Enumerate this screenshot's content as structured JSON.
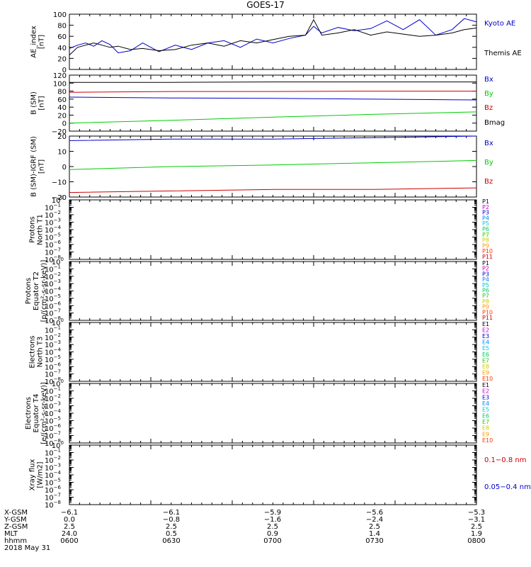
{
  "title": "GOES-17",
  "colors": {
    "blue": "#0000cc",
    "red": "#cc0000",
    "green": "#00cc00",
    "black": "#000000"
  },
  "chart_data": [
    {
      "type": "line",
      "panel": "ae",
      "ylabel": [
        "AE_index",
        "[nT]"
      ],
      "ylim": [
        0,
        100
      ],
      "yticks": [
        "0",
        "20",
        "40",
        "60",
        "80",
        "100"
      ],
      "ytick_values": [
        0,
        20,
        40,
        60,
        80,
        100
      ],
      "x": [
        0.0,
        0.02,
        0.04,
        0.06,
        0.08,
        0.1,
        0.12,
        0.15,
        0.18,
        0.22,
        0.26,
        0.3,
        0.34,
        0.38,
        0.42,
        0.46,
        0.5,
        0.54,
        0.58,
        0.6,
        0.62,
        0.66,
        0.7,
        0.74,
        0.78,
        0.82,
        0.86,
        0.9,
        0.94,
        0.97,
        1.0
      ],
      "series": [
        {
          "name": "Kyoto AE",
          "color": "#0000cc",
          "values": [
            38,
            44,
            48,
            42,
            52,
            45,
            30,
            34,
            48,
            32,
            44,
            36,
            48,
            52,
            40,
            55,
            48,
            56,
            62,
            78,
            66,
            76,
            70,
            74,
            88,
            72,
            90,
            62,
            72,
            92,
            86
          ]
        },
        {
          "name": "Themis AE",
          "color": "#000000",
          "values": [
            26,
            40,
            44,
            48,
            44,
            40,
            42,
            36,
            38,
            34,
            36,
            44,
            48,
            42,
            52,
            48,
            54,
            60,
            62,
            90,
            62,
            66,
            72,
            62,
            68,
            64,
            60,
            62,
            66,
            72,
            75
          ]
        }
      ]
    },
    {
      "type": "line",
      "panel": "bsm",
      "ylabel": [
        "B (SM)",
        "[nT]"
      ],
      "ylim": [
        -20,
        120
      ],
      "yticks": [
        "−20",
        "0",
        "20",
        "40",
        "60",
        "80",
        "100",
        "120"
      ],
      "ytick_values": [
        -20,
        0,
        20,
        40,
        60,
        80,
        100,
        120
      ],
      "x": [
        0,
        0.25,
        0.5,
        0.75,
        1.0
      ],
      "series": [
        {
          "name": "Bx",
          "color": "#0000cc",
          "values": [
            65,
            63,
            62,
            60,
            58
          ]
        },
        {
          "name": "By",
          "color": "#00cc00",
          "values": [
            0,
            7,
            15,
            22,
            28
          ]
        },
        {
          "name": "Bz",
          "color": "#cc0000",
          "values": [
            77,
            79,
            79,
            80,
            80
          ]
        },
        {
          "name": "Bmag",
          "color": "#000000",
          "values": [
            102,
            102,
            103,
            103,
            103
          ]
        }
      ]
    },
    {
      "type": "line",
      "panel": "bigrf",
      "ylabel": [
        "B (SM)-IGRF (SM)",
        "[nT]"
      ],
      "ylim": [
        -20,
        20
      ],
      "yticks": [
        "−20",
        "−10",
        "0",
        "10",
        "20"
      ],
      "ytick_values": [
        -20,
        -10,
        0,
        10,
        20
      ],
      "x": [
        0,
        0.25,
        0.5,
        0.75,
        1.0
      ],
      "series": [
        {
          "name": "Bx",
          "color": "#0000cc",
          "values": [
            17,
            18,
            18,
            19,
            20
          ]
        },
        {
          "name": "By",
          "color": "#00cc00",
          "values": [
            -2,
            0,
            1,
            2.5,
            4
          ]
        },
        {
          "name": "Bz",
          "color": "#cc0000",
          "values": [
            -17,
            -16,
            -15,
            -15,
            -14
          ]
        }
      ]
    }
  ],
  "log_panels": [
    {
      "ylabel": [
        "Protons",
        "North T1"
      ],
      "labels": [
        "P1",
        "P2",
        "P3",
        "P4",
        "P5",
        "P6",
        "P7",
        "P8",
        "P9",
        "P10",
        "P11"
      ]
    },
    {
      "ylabel": [
        "Protons",
        "Equator T2",
        "[p/(cm²-s-sr-keV)]"
      ],
      "labels": [
        "P1",
        "P2",
        "P3",
        "P4",
        "P5",
        "P6",
        "P7",
        "P8",
        "P9",
        "P10",
        "P11"
      ]
    },
    {
      "ylabel": [
        "Electrons",
        "North T3"
      ],
      "labels": [
        "E1",
        "E2",
        "E3",
        "E4",
        "E5",
        "E6",
        "E7",
        "E8",
        "E9",
        "E10"
      ]
    },
    {
      "ylabel": [
        "Electrons",
        "Equator T4",
        "[e/(cm²-s-sr-keV)]"
      ],
      "labels": [
        "E1",
        "E2",
        "E3",
        "E4",
        "E5",
        "E6",
        "E7",
        "E8",
        "E9",
        "E10"
      ]
    },
    {
      "ylabel": [
        "Xray flux",
        "[W/m2]"
      ],
      "labels": [
        "0.1−0.8 nm",
        "0.05−0.4 nm"
      ]
    }
  ],
  "log_ticks": [
    "0",
    "−1",
    "−2",
    "−3",
    "−4",
    "−5",
    "−6",
    "−7",
    "−8"
  ],
  "label_palette": [
    "#000000",
    "#cc00cc",
    "#0000cc",
    "#0088ff",
    "#00cccc",
    "#00cc66",
    "#33cc00",
    "#cccc00",
    "#ff9900",
    "#ff3300",
    "#cc0000"
  ],
  "ephemeris": {
    "rows": [
      {
        "label": "X-GSM",
        "values": [
          "−6.1",
          "−6.1",
          "−5.9",
          "−5.6",
          "−5.3"
        ]
      },
      {
        "label": "Y-GSM",
        "values": [
          "0.0",
          "−0.8",
          "−1.6",
          "−2.4",
          "−3.1"
        ]
      },
      {
        "label": "Z-GSM",
        "values": [
          "2.5",
          "2.5",
          "2.5",
          "2.5",
          "2.5"
        ]
      },
      {
        "label": "MLT",
        "values": [
          "24.0",
          "0.5",
          "0.9",
          "1.4",
          "1.9"
        ]
      },
      {
        "label": "hhmm",
        "values": [
          "0600",
          "0630",
          "0700",
          "0730",
          "0800"
        ]
      }
    ],
    "date": "2018 May 31"
  }
}
